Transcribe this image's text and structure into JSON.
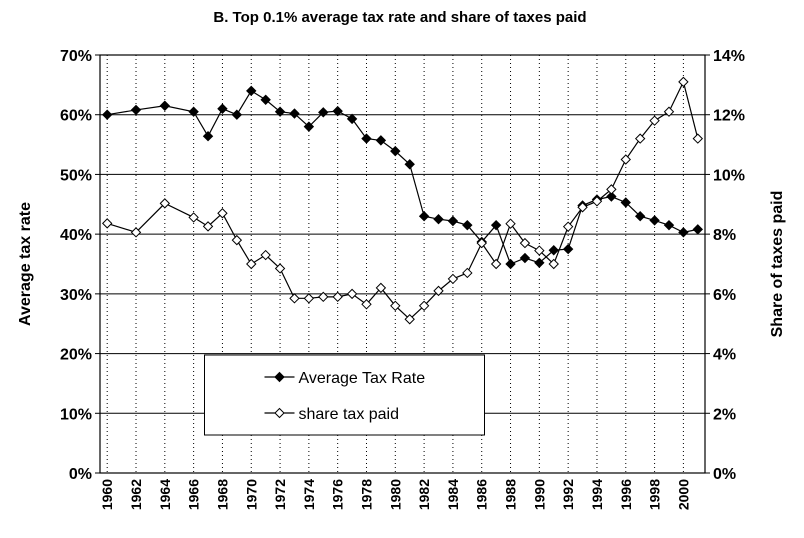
{
  "chart_data": {
    "type": "line",
    "title": "B. Top 0.1% average tax rate and share of taxes paid",
    "y_label": "Average tax rate",
    "y2_label": "Share of taxes paid",
    "categories": [
      "1960",
      null,
      "1962",
      null,
      "1964",
      null,
      "1966",
      null,
      "1968",
      null,
      "1970",
      null,
      "1972",
      null,
      "1974",
      null,
      "1976",
      null,
      "1978",
      null,
      "1980",
      null,
      "1982",
      null,
      "1984",
      null,
      "1986",
      null,
      "1988",
      null,
      "1990",
      null,
      "1992",
      null,
      "1994",
      null,
      "1996",
      null,
      "1998",
      null,
      "2000",
      null
    ],
    "series": [
      {
        "name": "Average Tax Rate",
        "color": "#000000",
        "marker_fill": "#000000",
        "values": [
          60,
          null,
          60.8,
          null,
          61.5,
          null,
          60.5,
          56.4,
          61,
          60,
          64,
          62.5,
          60.5,
          60.2,
          58,
          60.4,
          60.6,
          59.3,
          56,
          55.7,
          53.9,
          51.7,
          43,
          42.5,
          42.2,
          41.5,
          38.7,
          41.5,
          35,
          36,
          35.2,
          37.3,
          37.5,
          44.8,
          45.8,
          46.3,
          45.3,
          43,
          42.3,
          41.5,
          40.3,
          40.8
        ]
      },
      {
        "name": "share tax paid",
        "color": "#000000",
        "marker_fill": "#ffffff",
        "axis": "y2",
        "values": [
          8.36,
          null,
          8.06,
          null,
          9.03,
          null,
          8.56,
          8.26,
          8.7,
          7.8,
          7,
          7.3,
          6.85,
          5.85,
          5.85,
          5.9,
          5.9,
          6,
          5.65,
          6.2,
          5.6,
          5.15,
          5.6,
          6.1,
          6.5,
          6.7,
          7.7,
          7,
          8.35,
          7.7,
          7.45,
          7,
          8.25,
          8.9,
          9.1,
          9.5,
          10.5,
          11.2,
          11.8,
          12.1,
          13.1,
          11.2
        ]
      }
    ],
    "ylim": [
      0,
      70
    ],
    "yticks": [
      {
        "value": 0,
        "label": "0%"
      },
      {
        "value": 10,
        "label": "10%"
      },
      {
        "value": 20,
        "label": "20%"
      },
      {
        "value": 30,
        "label": "30%"
      },
      {
        "value": 40,
        "label": "40%"
      },
      {
        "value": 50,
        "label": "50%"
      },
      {
        "value": 60,
        "label": "60%"
      },
      {
        "value": 70,
        "label": "70%"
      }
    ],
    "y2lim": [
      0,
      14
    ],
    "y2ticks": [
      {
        "value": 0,
        "label": "0%"
      },
      {
        "value": 2,
        "label": "2%"
      },
      {
        "value": 4,
        "label": "4%"
      },
      {
        "value": 6,
        "label": "6%"
      },
      {
        "value": 8,
        "label": "8%"
      },
      {
        "value": 10,
        "label": "10%"
      },
      {
        "value": 12,
        "label": "12%"
      },
      {
        "value": 14,
        "label": "14%"
      }
    ],
    "grid": true,
    "legend": "lower center"
  }
}
